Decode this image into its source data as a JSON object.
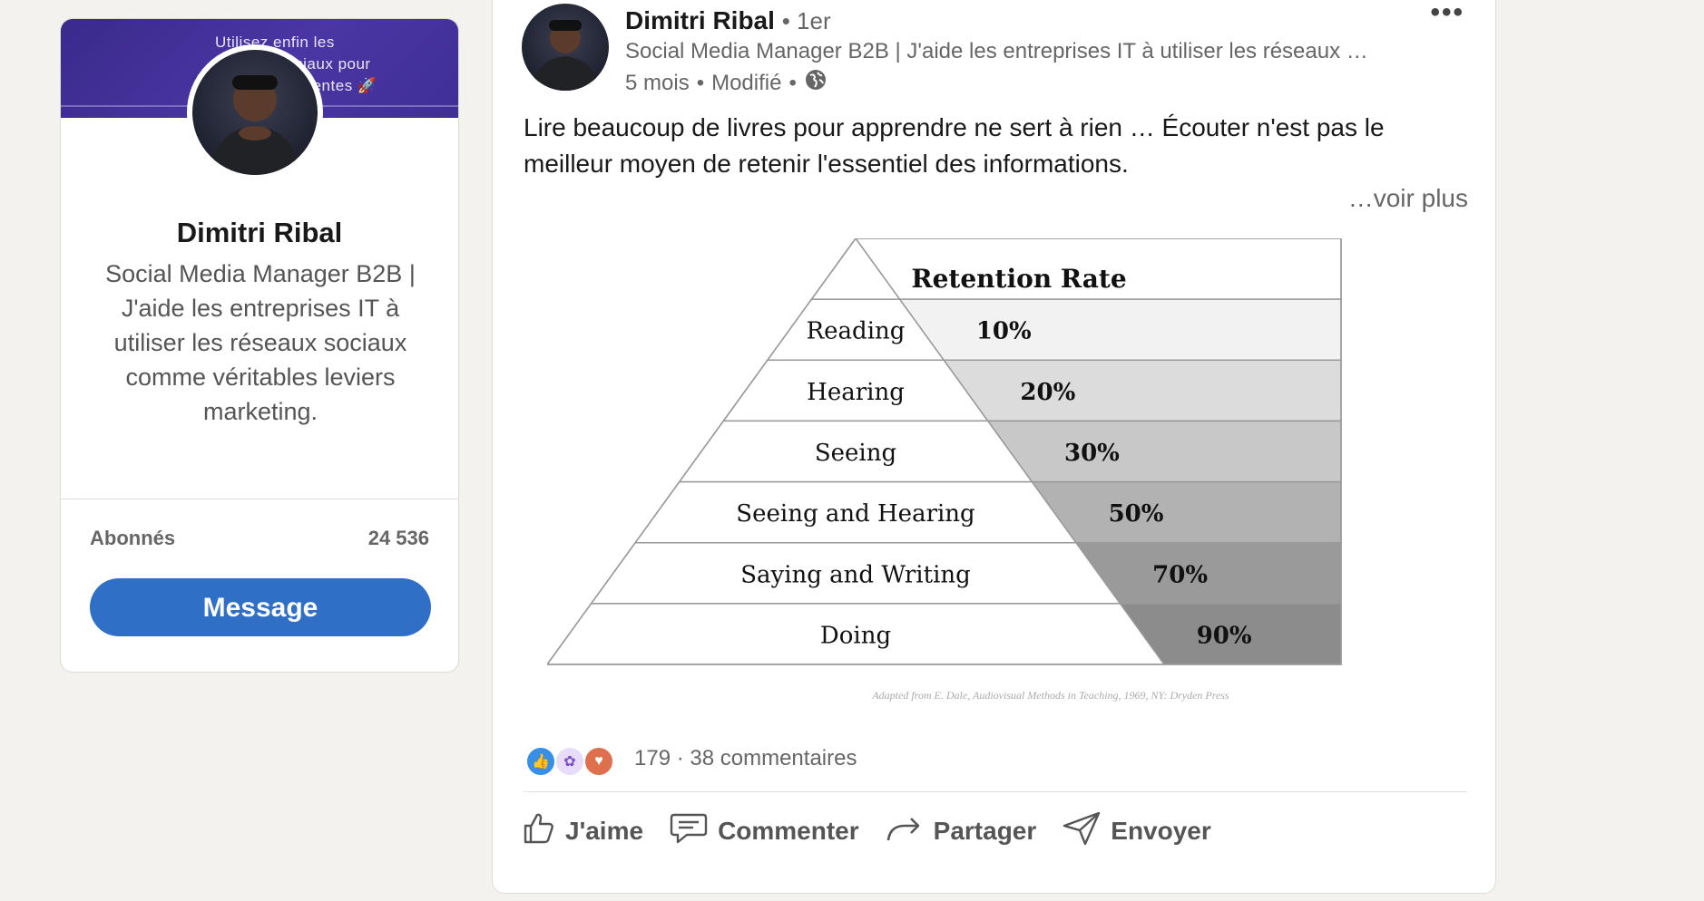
{
  "profile": {
    "banner_lines": [
      "Utilisez enfin les",
      "réseaux sociaux pour",
      "booster vos ventes 🚀"
    ],
    "name": "Dimitri Ribal",
    "headline": "Social Media Manager B2B | J'aide les entreprises IT à utiliser les réseaux sociaux comme véritables leviers marketing.",
    "followers_label": "Abonnés",
    "followers_count": "24 536",
    "message_label": "Message"
  },
  "post": {
    "author_name": "Dimitri Ribal",
    "degree": "• 1er",
    "headline": "Social Media Manager B2B | J'aide les entreprises IT à utiliser les réseaux …",
    "time": "5 mois",
    "edited": "Modifié",
    "more_label": "•••",
    "text": "Lire beaucoup de livres pour apprendre ne sert à rien … Écouter n'est pas le meilleur moyen de retenir l'essentiel des informations.",
    "see_more": "…voir plus",
    "reactions_count": "179",
    "comments": "38 commentaires",
    "separator": "·",
    "actions": {
      "like": "J'aime",
      "comment": "Commenter",
      "share": "Partager",
      "send": "Envoyer"
    }
  },
  "chart_data": {
    "type": "table",
    "title": "Retention Rate",
    "rows": [
      {
        "label": "Reading",
        "value": "10%",
        "shade": "#f2f2f2"
      },
      {
        "label": "Hearing",
        "value": "20%",
        "shade": "#dcdcdc"
      },
      {
        "label": "Seeing",
        "value": "30%",
        "shade": "#c8c8c8"
      },
      {
        "label": "Seeing and Hearing",
        "value": "50%",
        "shade": "#b2b2b2"
      },
      {
        "label": "Saying and Writing",
        "value": "70%",
        "shade": "#9a9a9a"
      },
      {
        "label": "Doing",
        "value": "90%",
        "shade": "#8c8c8c"
      }
    ],
    "caption": "Adapted from E. Dale, Audiovisual Methods in Teaching, 1969, NY: Dryden Press"
  },
  "icons": {
    "globe": "globe-icon",
    "like": "thumbs-up-icon",
    "comment": "speech-bubble-icon",
    "share": "share-arrow-icon",
    "send": "paper-plane-icon"
  },
  "colors": {
    "accent": "#2f6fc6",
    "banner": "#3f2f95",
    "like_reaction": "#378fe9",
    "support_reaction": "#a872e8",
    "love_reaction": "#df704d"
  }
}
